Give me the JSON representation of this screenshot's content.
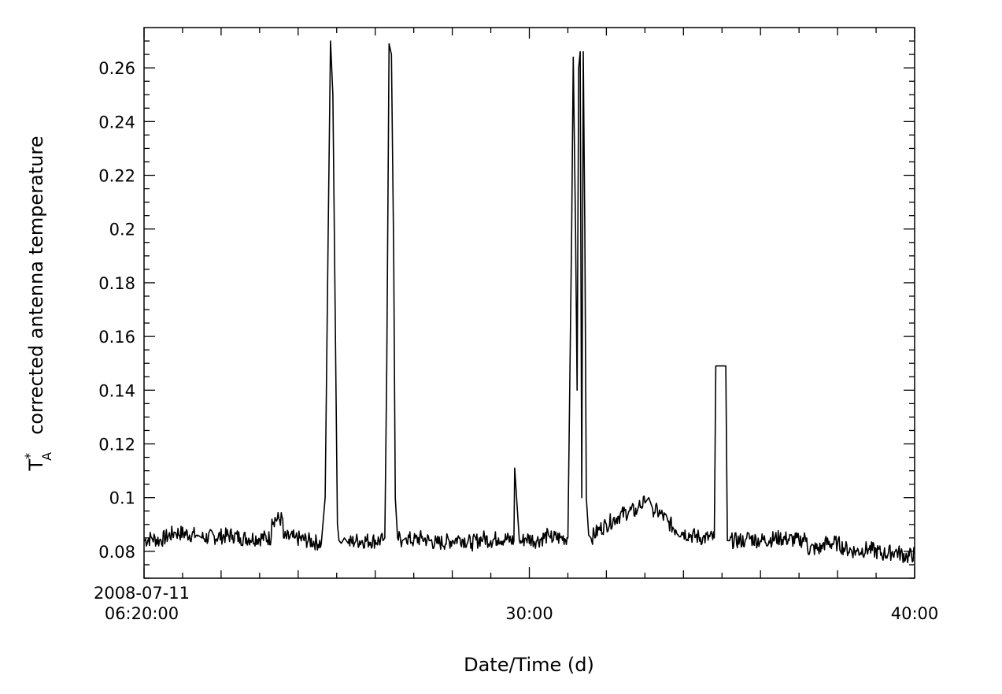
{
  "chart_data": {
    "type": "line",
    "title": "",
    "xlabel": "Date/Time (d)",
    "ylabel_symbol": "T",
    "ylabel_superscript": "*",
    "ylabel_subscript": "A",
    "ylabel_text": "corrected antenna temperature",
    "xlim": [
      "06:20:00",
      "06:40:00"
    ],
    "ylim": [
      0.07,
      0.275
    ],
    "x_tick_labels": [
      {
        "x": "06:20:00",
        "lines": [
          "2008-07-11",
          "06:20:00"
        ]
      },
      {
        "x": "06:30:00",
        "lines": [
          "30:00"
        ]
      },
      {
        "x": "06:40:00",
        "lines": [
          "40:00"
        ]
      }
    ],
    "y_ticks": [
      0.08,
      0.1,
      0.12,
      0.14,
      0.16,
      0.18,
      0.2,
      0.22,
      0.24,
      0.26
    ],
    "y_tick_labels": [
      "0.08",
      "0.1",
      "0.12",
      "0.14",
      "0.16",
      "0.18",
      "0.2",
      "0.22",
      "0.24",
      "0.26"
    ],
    "line_color": "#000000",
    "series": [
      {
        "x_unit": "minutes after 06:20:00",
        "x": [
          0.0,
          0.2,
          0.4,
          0.8,
          0.82,
          1.4,
          1.5,
          2.3,
          2.5,
          3.3,
          3.32,
          3.6,
          3.62,
          3.9,
          3.92,
          4.6,
          4.7,
          4.78,
          4.84,
          4.9,
          4.96,
          5.02,
          5.06,
          5.12,
          5.2,
          5.3,
          5.5,
          6.2,
          6.25,
          6.3,
          6.36,
          6.42,
          6.48,
          6.52,
          6.58,
          6.7,
          6.8,
          7.0,
          7.2,
          7.4,
          7.6,
          8.0,
          8.2,
          8.5,
          8.8,
          9.0,
          9.2,
          9.6,
          9.62,
          9.74,
          9.76,
          9.9,
          10.2,
          10.5,
          10.55,
          10.8,
          11.0,
          11.1,
          11.14,
          11.2,
          11.24,
          11.28,
          11.32,
          11.36,
          11.4,
          11.44,
          11.48,
          11.54,
          11.6,
          11.8,
          12.0,
          12.3,
          12.6,
          12.8,
          12.84,
          13.0,
          13.1,
          13.2,
          13.4,
          13.6,
          13.8,
          14.0,
          14.2,
          14.5,
          14.8,
          14.84,
          15.0,
          15.1,
          15.14,
          15.2,
          15.6,
          15.64,
          16.0,
          16.5,
          17.0,
          17.2,
          17.22,
          17.6,
          17.62,
          18.0,
          18.2,
          18.5,
          18.8,
          19.2,
          19.5,
          19.8,
          20.0
        ],
        "y": [
          0.084,
          0.085,
          0.084,
          0.087,
          0.087,
          0.086,
          0.085,
          0.086,
          0.085,
          0.085,
          0.092,
          0.092,
          0.085,
          0.085,
          0.085,
          0.083,
          0.1,
          0.2,
          0.27,
          0.25,
          0.17,
          0.09,
          0.084,
          0.083,
          0.085,
          0.083,
          0.084,
          0.084,
          0.085,
          0.15,
          0.269,
          0.265,
          0.19,
          0.1,
          0.085,
          0.084,
          0.085,
          0.084,
          0.085,
          0.084,
          0.083,
          0.084,
          0.085,
          0.083,
          0.085,
          0.084,
          0.085,
          0.084,
          0.111,
          0.084,
          0.083,
          0.085,
          0.084,
          0.086,
          0.085,
          0.085,
          0.085,
          0.2,
          0.264,
          0.2,
          0.14,
          0.26,
          0.266,
          0.1,
          0.266,
          0.2,
          0.1,
          0.086,
          0.085,
          0.088,
          0.09,
          0.093,
          0.095,
          0.095,
          0.097,
          0.098,
          0.1,
          0.096,
          0.094,
          0.091,
          0.088,
          0.087,
          0.086,
          0.085,
          0.085,
          0.149,
          0.149,
          0.149,
          0.084,
          0.084,
          0.084,
          0.085,
          0.084,
          0.085,
          0.084,
          0.085,
          0.081,
          0.081,
          0.083,
          0.083,
          0.081,
          0.08,
          0.081,
          0.079,
          0.08,
          0.078,
          0.079
        ]
      }
    ]
  }
}
